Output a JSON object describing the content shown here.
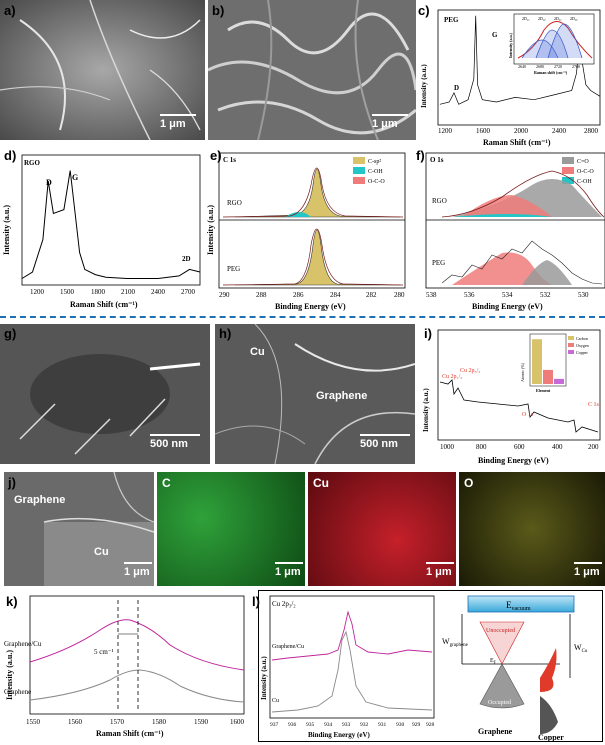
{
  "panels": {
    "a": {
      "letter": "a)",
      "scale": "1 μm"
    },
    "b": {
      "letter": "b)",
      "scale": "1 μm"
    },
    "c": {
      "letter": "c)",
      "title": "PEG",
      "xlabel": "Raman Shift (cm⁻¹)",
      "ylabel": "Intensity (a.u.)",
      "peaks": [
        "D",
        "G",
        "2D"
      ],
      "xticks": [
        "1200",
        "1600",
        "2000",
        "2400",
        "2800"
      ],
      "inset": {
        "xlabel": "Raman shift (cm⁻¹)",
        "ylabel": "Intensity (a.u.)",
        "xticks": [
          "2640",
          "2680",
          "2720",
          "2760"
        ],
        "labels": [
          "2D₁ₐ",
          "2D₁ᵦ",
          "2D₂ₐ",
          "2D₂ᵦ"
        ]
      }
    },
    "d": {
      "letter": "d)",
      "title": "RGO",
      "xlabel": "Raman Shift (cm⁻¹)",
      "ylabel": "Intensity (a.u.)",
      "peaks": [
        "D",
        "G",
        "2D"
      ],
      "xticks": [
        "1200",
        "1500",
        "1800",
        "2100",
        "2400",
        "2700"
      ]
    },
    "e": {
      "letter": "e)",
      "title": "C 1s",
      "xlabel": "Binding Energy (eV)",
      "ylabel": "Intensity (a.u.)",
      "labels": [
        "RGO",
        "PEG"
      ],
      "legend": [
        "C-sp²",
        "C-OH",
        "O-C-O"
      ],
      "xticks": [
        "290",
        "288",
        "286",
        "284",
        "282",
        "280"
      ]
    },
    "f": {
      "letter": "f)",
      "title": "O 1s",
      "xlabel": "Binding Energy (eV)",
      "labels": [
        "RGO",
        "PEG"
      ],
      "legend": [
        "C=O",
        "O-C-O",
        "C-OH"
      ],
      "xticks": [
        "538",
        "536",
        "534",
        "532",
        "530"
      ]
    },
    "g": {
      "letter": "g)",
      "scale": "500 nm"
    },
    "h": {
      "letter": "h)",
      "scale": "500 nm",
      "labels": [
        "Cu",
        "Graphene"
      ]
    },
    "i": {
      "letter": "i)",
      "xlabel": "Binding Energy (eV)",
      "ylabel": "Intensity (a.u.)",
      "xticks": [
        "1000",
        "800",
        "600",
        "400",
        "200"
      ],
      "peaks": [
        "Cu 2p₁/₂",
        "Cu 2p₃/₂",
        "O 1s",
        "C 1s"
      ],
      "inset": {
        "ylabel": "Atomic (%)",
        "xlabel": "Element",
        "yticks": [
          "70",
          "60",
          "50",
          "40",
          "30",
          "20",
          "10",
          "0"
        ],
        "legend": [
          "Carbon",
          "Oxygen",
          "Copper"
        ]
      }
    },
    "j": {
      "letter": "j)",
      "labels": [
        "Graphene",
        "Cu"
      ],
      "maps": [
        "C",
        "Cu",
        "O"
      ],
      "scale": "1 μm"
    },
    "k": {
      "letter": "k)",
      "xlabel": "Raman Shift (cm⁻¹)",
      "ylabel": "Intensity (a.u.)",
      "labels": [
        "Graphene/Cu",
        "Graphene"
      ],
      "shift": "5 cm⁻¹",
      "xticks": [
        "1550",
        "1560",
        "1570",
        "1580",
        "1590",
        "1600"
      ]
    },
    "l": {
      "letter": "l)",
      "title": "Cu 2p₃/₂",
      "xlabel": "Binding Energy (eV)",
      "ylabel": "Intensity (a.u.)",
      "labels": [
        "Graphene/Cu",
        "Cu"
      ],
      "xticks": [
        "937",
        "936",
        "935",
        "934",
        "933",
        "932",
        "931",
        "930",
        "929",
        "928"
      ],
      "diagram": {
        "vacuum": "E",
        "vacuum_sub": "vacuum",
        "wg": "W",
        "wg_sub": "graphene",
        "wcu": "W",
        "wcu_sub": "Cu",
        "unoccupied": "Unoccupied",
        "occupied": "Occupied",
        "ef": "E",
        "ef_sub": "F",
        "graphene": "Graphene",
        "copper": "Copper"
      }
    }
  },
  "colors": {
    "accent": "#1f6fb5",
    "magenta": "#c0259c",
    "gray": "#8a8a8a",
    "red": "#e03a2a",
    "green": "#2bb33a"
  },
  "chart_data": [
    {
      "type": "line",
      "title": "PEG",
      "xlabel": "Raman Shift (cm⁻¹)",
      "ylabel": "Intensity (a.u.)",
      "xlim": [
        1180,
        2900
      ],
      "x": [
        1200,
        1300,
        1350,
        1400,
        1500,
        1560,
        1580,
        1600,
        1650,
        1800,
        2000,
        2200,
        2400,
        2600,
        2650,
        2680,
        2700,
        2750,
        2800,
        2900
      ],
      "y": [
        0.18,
        0.2,
        0.28,
        0.18,
        0.22,
        0.4,
        0.95,
        0.35,
        0.22,
        0.2,
        0.24,
        0.22,
        0.26,
        0.3,
        0.45,
        0.72,
        0.6,
        0.35,
        0.3,
        0.25
      ]
    },
    {
      "type": "line",
      "title": "RGO",
      "xlabel": "Raman Shift (cm⁻¹)",
      "ylabel": "Intensity (a.u.)",
      "xlim": [
        1100,
        2800
      ],
      "x": [
        1100,
        1200,
        1300,
        1350,
        1400,
        1500,
        1560,
        1600,
        1650,
        1700,
        1800,
        1900,
        2100,
        2400,
        2600,
        2700,
        2800
      ],
      "y": [
        0.05,
        0.1,
        0.35,
        0.8,
        0.55,
        0.58,
        0.88,
        0.6,
        0.25,
        0.12,
        0.08,
        0.06,
        0.05,
        0.05,
        0.07,
        0.12,
        0.1
      ]
    },
    {
      "type": "bar",
      "xlabel": "Element",
      "ylabel": "Atomic (%)",
      "categories": [
        "Carbon",
        "Oxygen",
        "Copper"
      ],
      "values": [
        70,
        22,
        8
      ],
      "ylim": [
        0,
        75
      ]
    }
  ]
}
